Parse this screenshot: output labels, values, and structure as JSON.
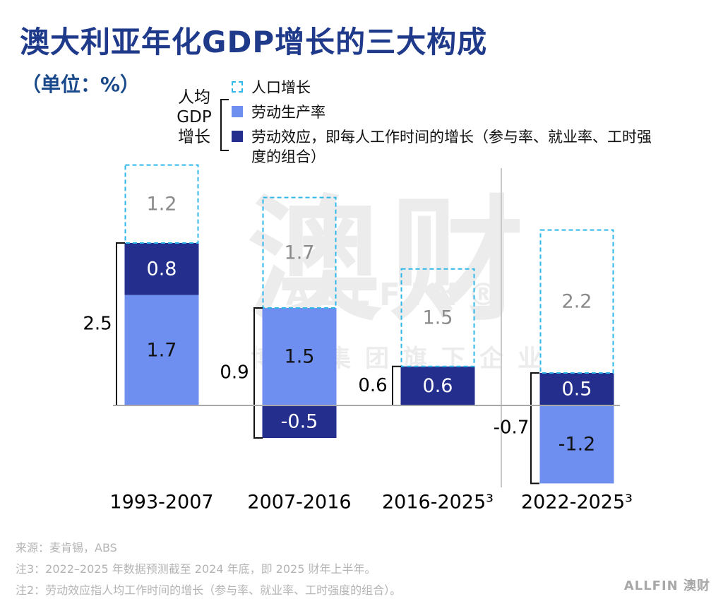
{
  "title": "澳大利亚年化GDP增长的三大构成",
  "unit": "（单位：%）",
  "legend": {
    "group_label_lines": [
      "人均",
      "GDP",
      "增长"
    ],
    "items": [
      {
        "key": "pop",
        "label": "人口增长",
        "color": "#2eb7e8"
      },
      {
        "key": "prod",
        "label": "劳动生产率",
        "color": "#6f8ff0"
      },
      {
        "key": "labor",
        "label": "劳动效应，即每人工作时间的增长（参与率、就业率、工时强度的组合）",
        "color": "#242e8c"
      }
    ]
  },
  "watermark": {
    "main": "澳财",
    "sub": "ALLFIN®",
    "sub2": "博瀚集团旗下企业"
  },
  "chart_data": {
    "type": "bar",
    "stacked": true,
    "categories": [
      "1993-2007",
      "2007-2016",
      "2016-2025³",
      "2022-2025³"
    ],
    "series": [
      {
        "name": "劳动生产率",
        "key": "prod",
        "values": [
          1.7,
          1.5,
          0,
          -1.2
        ]
      },
      {
        "name": "劳动效应，即每人工作时间的增长（参与率、就业率、工时强度的组合）",
        "key": "labor",
        "values": [
          0.8,
          -0.5,
          0.6,
          0.5
        ]
      },
      {
        "name": "人口增长",
        "key": "pop",
        "values": [
          1.2,
          1.7,
          1.5,
          2.2
        ]
      }
    ],
    "per_capita_totals": [
      "2.5",
      "0.9",
      "0.6",
      "-0.7"
    ],
    "value_labels": {
      "prod": [
        "1.7",
        "1.5",
        "",
        "-1.2"
      ],
      "labor": [
        "0.8",
        "-0.5",
        "0.6",
        "0.5"
      ],
      "pop": [
        "1.2",
        "1.7",
        "1.5",
        "2.2"
      ]
    },
    "grid": false
  },
  "footnotes": [
    "来源：麦肯锡，ABS",
    "注3：2022–2025 年数据预测截至 2024 年底，即 2025 财年上半年。",
    "注2：劳动效应指人均工作时间的增长（参与率、就业率、工时强度的组合）。"
  ],
  "brand": "ALLFIN 澳财"
}
